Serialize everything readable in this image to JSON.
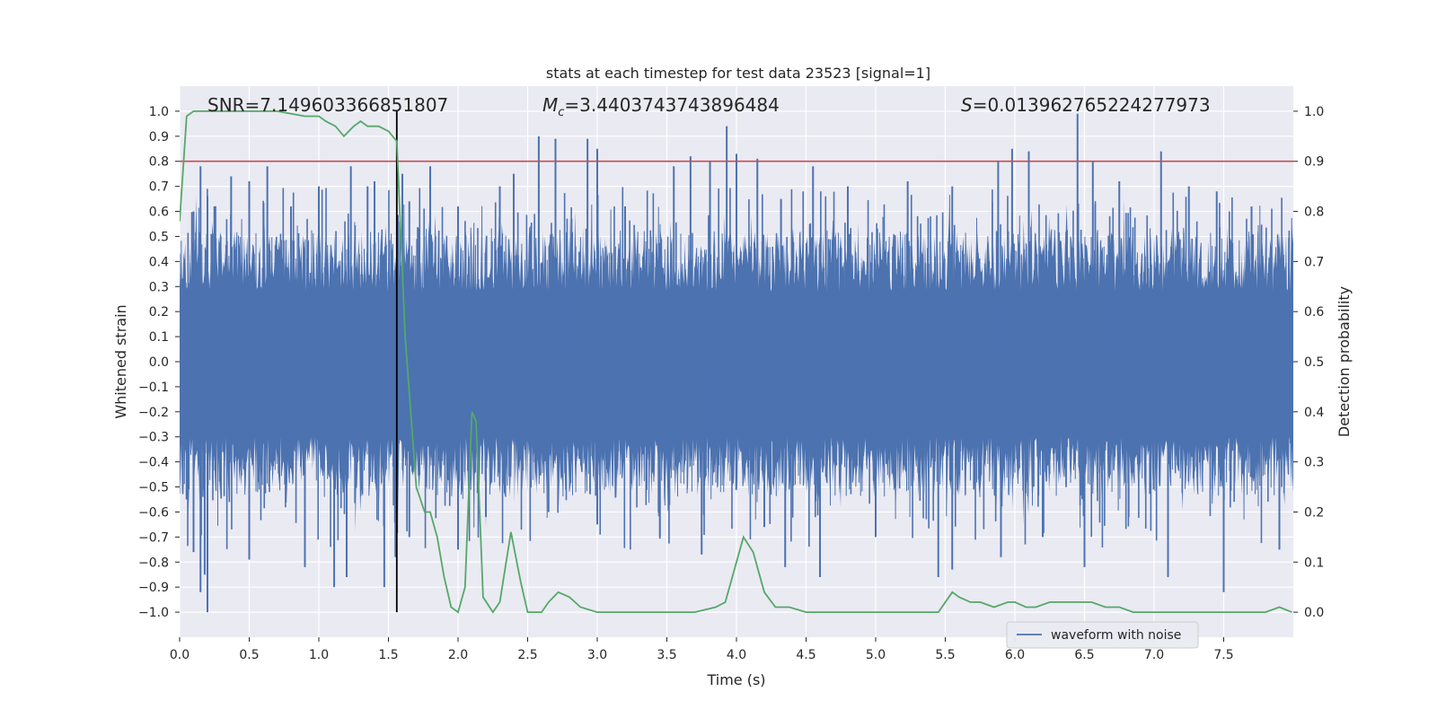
{
  "chart_data": {
    "type": "line",
    "title": "stats at each timestep for test data 23523 [signal=1]",
    "xlabel": "Time (s)",
    "ylabel": "Whitened strain",
    "y2label": "Detection probability",
    "xlim": [
      0,
      8
    ],
    "ylim": [
      -1.1,
      1.1
    ],
    "y2lim": [
      -0.05,
      1.05
    ],
    "x_ticks": [
      "0.0",
      "0.5",
      "1.0",
      "1.5",
      "2.0",
      "2.5",
      "3.0",
      "3.5",
      "4.0",
      "4.5",
      "5.0",
      "5.5",
      "6.0",
      "6.5",
      "7.0",
      "7.5"
    ],
    "y_ticks": [
      "−1.0",
      "−0.9",
      "−0.8",
      "−0.7",
      "−0.6",
      "−0.5",
      "−0.4",
      "−0.3",
      "−0.2",
      "−0.1",
      "0.0",
      "0.1",
      "0.2",
      "0.3",
      "0.4",
      "0.5",
      "0.6",
      "0.7",
      "0.8",
      "0.9",
      "1.0"
    ],
    "y2_ticks": [
      "0.0",
      "0.1",
      "0.2",
      "0.3",
      "0.4",
      "0.5",
      "0.6",
      "0.7",
      "0.8",
      "0.9",
      "1.0"
    ],
    "grid": true,
    "legend": {
      "placement": "lower-right",
      "entries": [
        "waveform with noise"
      ]
    },
    "annotations": {
      "snr": "SNR=7.149603366851807",
      "mc_symbol": "M",
      "mc_sub": "c",
      "mc_value": "=3.4403743743896484",
      "s_symbol": "S",
      "s_value": "=0.013962765224277973"
    },
    "threshold": 0.9,
    "marker_time": 1.56,
    "series": [
      {
        "name": "waveform with noise",
        "color": "#4c72b0",
        "kind": "noise",
        "typical_upper": 0.4,
        "typical_lower": -0.42,
        "max_peak": 0.99,
        "min_trough": -1.0,
        "upper_peaks": [
          [
            0.1,
            0.6
          ],
          [
            0.15,
            0.78
          ],
          [
            0.2,
            0.66
          ],
          [
            0.25,
            0.62
          ],
          [
            0.37,
            0.74
          ],
          [
            0.5,
            0.72
          ],
          [
            0.63,
            0.78
          ],
          [
            0.8,
            0.62
          ],
          [
            1.0,
            0.7
          ],
          [
            1.23,
            0.78
          ],
          [
            1.35,
            0.7
          ],
          [
            1.4,
            0.72
          ],
          [
            1.6,
            0.75
          ],
          [
            1.65,
            0.64
          ],
          [
            1.8,
            0.78
          ],
          [
            2.0,
            0.62
          ],
          [
            2.3,
            0.7
          ],
          [
            2.4,
            0.75
          ],
          [
            2.58,
            0.9
          ],
          [
            2.7,
            0.89
          ],
          [
            2.93,
            0.89
          ],
          [
            3.0,
            0.85
          ],
          [
            3.2,
            0.62
          ],
          [
            3.55,
            0.78
          ],
          [
            3.67,
            0.82
          ],
          [
            3.81,
            0.8
          ],
          [
            3.93,
            0.94
          ],
          [
            4.0,
            0.83
          ],
          [
            4.15,
            0.81
          ],
          [
            4.32,
            0.65
          ],
          [
            4.55,
            0.78
          ],
          [
            4.8,
            0.7
          ],
          [
            5.23,
            0.72
          ],
          [
            5.55,
            0.7
          ],
          [
            5.88,
            0.8
          ],
          [
            5.98,
            0.85
          ],
          [
            6.1,
            0.84
          ],
          [
            6.45,
            0.99
          ],
          [
            6.56,
            0.8
          ],
          [
            6.75,
            0.72
          ],
          [
            7.05,
            0.84
          ],
          [
            7.25,
            0.7
          ],
          [
            7.45,
            0.68
          ],
          [
            7.7,
            0.62
          ]
        ],
        "lower_peaks": [
          [
            0.05,
            -0.55
          ],
          [
            0.1,
            -0.76
          ],
          [
            0.15,
            -0.92
          ],
          [
            0.18,
            -0.85
          ],
          [
            0.2,
            -1.0
          ],
          [
            0.5,
            -0.79
          ],
          [
            0.9,
            -0.82
          ],
          [
            1.11,
            -0.9
          ],
          [
            1.2,
            -0.86
          ],
          [
            1.47,
            -0.9
          ],
          [
            1.55,
            -0.78
          ],
          [
            1.65,
            -0.7
          ],
          [
            2.0,
            -0.75
          ],
          [
            2.2,
            -0.62
          ],
          [
            2.65,
            -0.6
          ],
          [
            3.0,
            -0.65
          ],
          [
            3.45,
            -0.7
          ],
          [
            3.75,
            -0.77
          ],
          [
            4.2,
            -0.66
          ],
          [
            4.35,
            -0.82
          ],
          [
            4.6,
            -0.86
          ],
          [
            5.0,
            -0.7
          ],
          [
            5.45,
            -0.86
          ],
          [
            5.55,
            -0.83
          ],
          [
            5.9,
            -0.78
          ],
          [
            6.2,
            -0.7
          ],
          [
            6.5,
            -0.82
          ],
          [
            7.1,
            -0.86
          ],
          [
            7.5,
            -0.92
          ],
          [
            7.9,
            -0.75
          ]
        ]
      },
      {
        "name": "",
        "color": "#55a868",
        "axis": "right",
        "x": [
          0,
          0.05,
          0.1,
          0.2,
          0.3,
          0.5,
          0.7,
          0.9,
          1.0,
          1.05,
          1.12,
          1.18,
          1.25,
          1.3,
          1.35,
          1.43,
          1.5,
          1.56,
          1.62,
          1.7,
          1.76,
          1.8,
          1.85,
          1.9,
          1.95,
          2.0,
          2.05,
          2.1,
          2.13,
          2.18,
          2.25,
          2.3,
          2.38,
          2.45,
          2.5,
          2.6,
          2.65,
          2.72,
          2.8,
          2.88,
          3.0,
          3.1,
          3.3,
          3.5,
          3.7,
          3.85,
          3.92,
          4.0,
          4.05,
          4.12,
          4.2,
          4.28,
          4.38,
          4.5,
          4.6,
          4.75,
          4.9,
          5.0,
          5.2,
          5.45,
          5.55,
          5.6,
          5.68,
          5.75,
          5.85,
          5.95,
          6.0,
          6.08,
          6.15,
          6.25,
          6.35,
          6.45,
          6.55,
          6.65,
          6.75,
          6.85,
          7.0,
          7.2,
          7.4,
          7.6,
          7.8,
          7.9,
          7.99
        ],
        "y": [
          0.78,
          0.99,
          1.0,
          1.0,
          1.0,
          1.0,
          1.0,
          0.99,
          0.99,
          0.98,
          0.97,
          0.95,
          0.97,
          0.98,
          0.97,
          0.97,
          0.96,
          0.94,
          0.55,
          0.25,
          0.2,
          0.2,
          0.15,
          0.07,
          0.01,
          0.0,
          0.05,
          0.4,
          0.38,
          0.03,
          0.0,
          0.02,
          0.16,
          0.06,
          0.0,
          0.0,
          0.02,
          0.04,
          0.03,
          0.01,
          0.0,
          0.0,
          0.0,
          0.0,
          0.0,
          0.01,
          0.02,
          0.1,
          0.15,
          0.12,
          0.04,
          0.01,
          0.01,
          0.0,
          0.0,
          0.0,
          0.0,
          0.0,
          0.0,
          0.0,
          0.04,
          0.03,
          0.02,
          0.02,
          0.01,
          0.02,
          0.02,
          0.01,
          0.01,
          0.02,
          0.02,
          0.02,
          0.02,
          0.01,
          0.01,
          0.0,
          0.0,
          0.0,
          0.0,
          0.0,
          0.0,
          0.01,
          0.0
        ]
      }
    ],
    "colors": {
      "background": "#eaeaf2",
      "grid": "#ffffff",
      "waveform": "#4c72b0",
      "probability": "#55a868",
      "threshold": "#c44e52",
      "marker": "#000000"
    }
  }
}
